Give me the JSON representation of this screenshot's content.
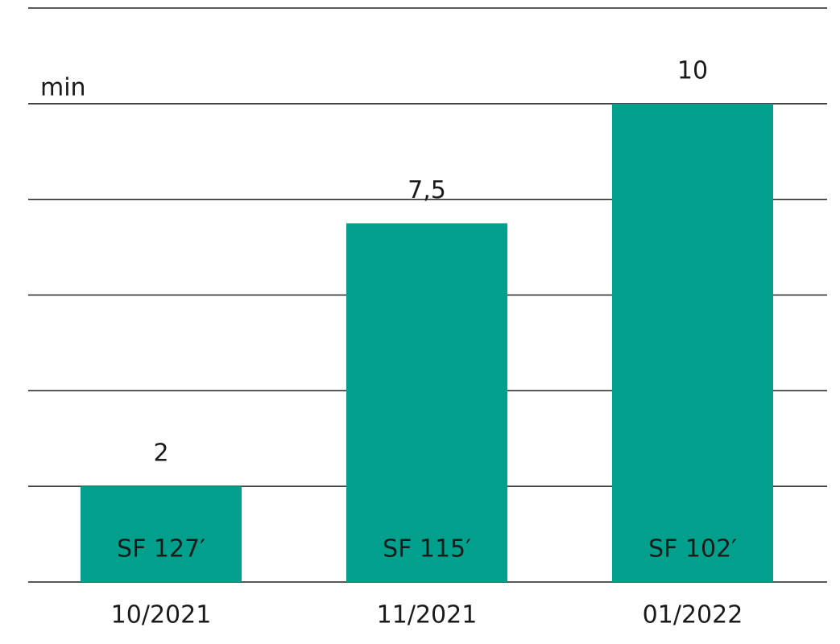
{
  "chart_data": {
    "type": "bar",
    "y_label": "min",
    "categories": [
      "10/2021",
      "11/2021",
      "01/2022"
    ],
    "values": [
      2,
      7.5,
      10
    ],
    "value_labels": [
      "2",
      "7,5",
      "10"
    ],
    "bar_labels": [
      "SF 127′",
      "SF 115′",
      "SF 102′"
    ],
    "color": "#00a08d",
    "ylim": [
      0,
      12
    ],
    "yticks": [
      0,
      2,
      4,
      6,
      8,
      10,
      12
    ],
    "grid": true
  }
}
